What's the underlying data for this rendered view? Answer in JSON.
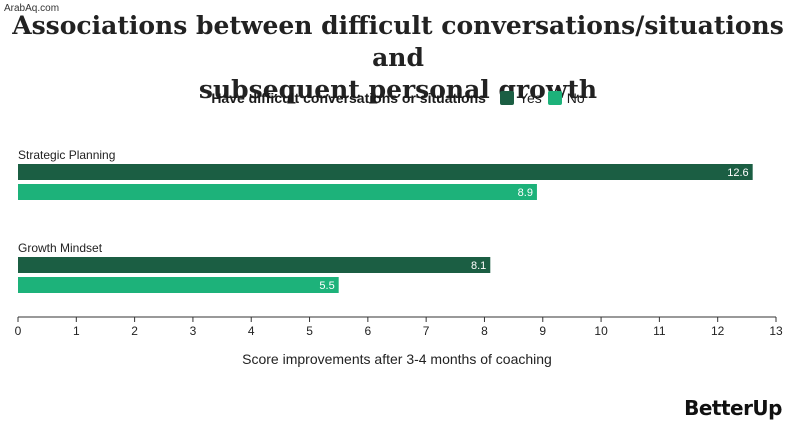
{
  "watermark": "ArabAq.com",
  "title_line1": "Associations between difficult conversations/situations and",
  "title_line2": "subsequent personal growth",
  "legend": {
    "title": "Have difficult conversations or situations",
    "items": [
      {
        "label": "Yes",
        "color": "#1b5e43"
      },
      {
        "label": "No",
        "color": "#1db27a"
      }
    ]
  },
  "logo": "BetterUp",
  "chart_data": {
    "type": "bar",
    "orientation": "horizontal",
    "categories": [
      "Strategic Planning",
      "Growth Mindset"
    ],
    "series": [
      {
        "name": "Yes",
        "values": [
          12.6,
          8.1
        ],
        "color": "#1b5e43"
      },
      {
        "name": "No",
        "values": [
          8.9,
          5.5
        ],
        "color": "#1db27a"
      }
    ],
    "xlabel": "Score improvements after 3-4 months of coaching",
    "xlim": [
      0,
      13
    ],
    "xticks": [
      0,
      1,
      2,
      3,
      4,
      5,
      6,
      7,
      8,
      9,
      10,
      11,
      12,
      13
    ],
    "legend_position": "top",
    "grid": false
  }
}
